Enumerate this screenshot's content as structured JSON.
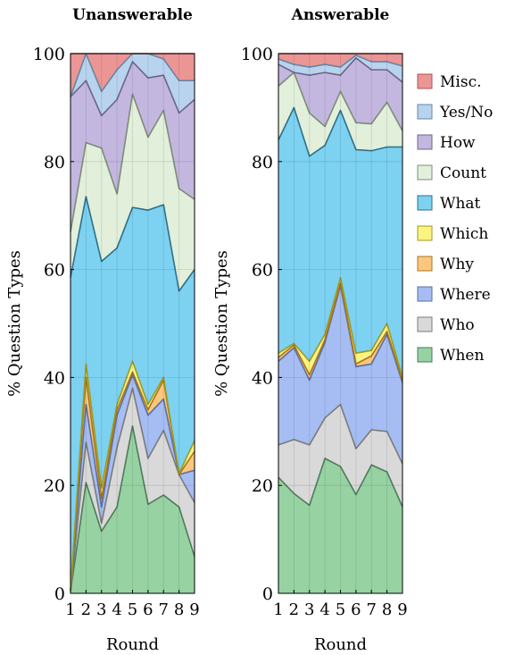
{
  "chart_data": [
    {
      "type": "area",
      "title": "Unanswerable",
      "xlabel": "Round",
      "ylabel": "% Question Types",
      "x": [
        1,
        2,
        3,
        4,
        5,
        6,
        7,
        8,
        9
      ],
      "xlim": [
        1,
        9
      ],
      "ylim": [
        0,
        100
      ],
      "yticks": [
        0,
        20,
        40,
        60,
        80,
        100
      ],
      "stacked": true,
      "grid": true,
      "series": [
        {
          "name": "When",
          "values": [
            0.3,
            20.5,
            11.5,
            16,
            31,
            16.5,
            18.2,
            16,
            6.8
          ]
        },
        {
          "name": "Who",
          "values": [
            0.2,
            7.5,
            1.5,
            11,
            7,
            8.5,
            12,
            6,
            10
          ]
        },
        {
          "name": "Where",
          "values": [
            0,
            7,
            3,
            6,
            2.5,
            8,
            5.8,
            0,
            6
          ]
        },
        {
          "name": "Why",
          "values": [
            0,
            5,
            1.5,
            1,
            0.5,
            1,
            3.5,
            0,
            3.5
          ]
        },
        {
          "name": "Which",
          "values": [
            0,
            2.5,
            2,
            1,
            2,
            1,
            0.5,
            0.2,
            2
          ]
        },
        {
          "name": "What",
          "values": [
            58,
            31,
            42,
            29,
            28.5,
            36,
            32,
            33.8,
            31.7
          ]
        },
        {
          "name": "Count",
          "values": [
            8.5,
            10,
            21,
            10,
            21,
            13.5,
            17.5,
            19,
            13
          ]
        },
        {
          "name": "How",
          "values": [
            25,
            11.5,
            6,
            17.5,
            6,
            11,
            6.5,
            14,
            18.5
          ]
        },
        {
          "name": "Yes/No",
          "values": [
            0,
            5,
            4.5,
            5.5,
            1.5,
            4.5,
            3,
            6,
            3.5
          ]
        },
        {
          "name": "Misc.",
          "values": [
            8,
            0,
            7,
            3,
            0,
            0,
            1,
            5,
            5
          ]
        }
      ]
    },
    {
      "type": "area",
      "title": "Answerable",
      "xlabel": "Round",
      "ylabel": "% Question Types",
      "x": [
        1,
        2,
        3,
        4,
        5,
        6,
        7,
        8,
        9
      ],
      "xlim": [
        1,
        9
      ],
      "ylim": [
        0,
        100
      ],
      "yticks": [
        0,
        20,
        40,
        60,
        80,
        100
      ],
      "stacked": true,
      "grid": true,
      "series": [
        {
          "name": "When",
          "values": [
            21.5,
            18.5,
            16.3,
            25,
            23.5,
            18.3,
            23.8,
            22.5,
            16
          ]
        },
        {
          "name": "Who",
          "values": [
            6,
            10,
            11.2,
            7.5,
            11.5,
            8.5,
            6.5,
            7.5,
            8
          ]
        },
        {
          "name": "Where",
          "values": [
            15.5,
            17,
            12,
            14,
            22,
            15.2,
            12.2,
            18,
            15
          ]
        },
        {
          "name": "Why",
          "values": [
            0.7,
            0.5,
            1,
            0.5,
            0.5,
            0.5,
            1.5,
            0.5,
            0.5
          ]
        },
        {
          "name": "Which",
          "values": [
            0.8,
            0.3,
            2.5,
            1,
            1,
            2,
            1,
            1.5,
            0.5
          ]
        },
        {
          "name": "What",
          "values": [
            39.5,
            43.7,
            38,
            35,
            31,
            37.7,
            37,
            32.7,
            42.7
          ]
        },
        {
          "name": "Count",
          "values": [
            10,
            6.5,
            8,
            3.5,
            3.5,
            5,
            5,
            8.3,
            3
          ]
        },
        {
          "name": "How",
          "values": [
            4,
            0,
            7,
            10,
            3,
            12,
            10,
            6,
            9
          ]
        },
        {
          "name": "Yes/No",
          "values": [
            1,
            1.5,
            1.5,
            1.5,
            1.5,
            0.5,
            1.5,
            1.5,
            3
          ]
        },
        {
          "name": "Misc.",
          "values": [
            1,
            2,
            2.5,
            2,
            2.5,
            0.3,
            1.5,
            1.5,
            2.3
          ]
        }
      ]
    }
  ],
  "legend": {
    "placement": "right",
    "items": [
      {
        "label": "Misc.",
        "color": "#ec9595"
      },
      {
        "label": "Yes/No",
        "color": "#b8d3ed"
      },
      {
        "label": "How",
        "color": "#c3b7e0"
      },
      {
        "label": "Count",
        "color": "#e1efdb"
      },
      {
        "label": "What",
        "color": "#7dd1f1"
      },
      {
        "label": "Which",
        "color": "#fbf481"
      },
      {
        "label": "Why",
        "color": "#fcc77d"
      },
      {
        "label": "Where",
        "color": "#a6bdf3"
      },
      {
        "label": "Who",
        "color": "#d9d9d9"
      },
      {
        "label": "When",
        "color": "#97d2a3"
      }
    ]
  },
  "colors": {
    "When": "#97d2a3",
    "Who": "#d9d9d9",
    "Where": "#a6bdf3",
    "Why": "#fcc77d",
    "Which": "#fbf481",
    "What": "#7dd1f1",
    "Count": "#e1efdb",
    "How": "#c3b7e0",
    "Yes/No": "#b8d3ed",
    "Misc.": "#ec9595"
  },
  "stroke_colors": {
    "When": "#4f7a58",
    "Who": "#7a7a7a",
    "Where": "#5a6f9e",
    "Why": "#a8741f",
    "Which": "#9e9a1f",
    "What": "#2f6f88",
    "Count": "#7d8c76",
    "How": "#6d6486",
    "Yes/No": "#6685a6",
    "Misc.": "#a85555"
  }
}
